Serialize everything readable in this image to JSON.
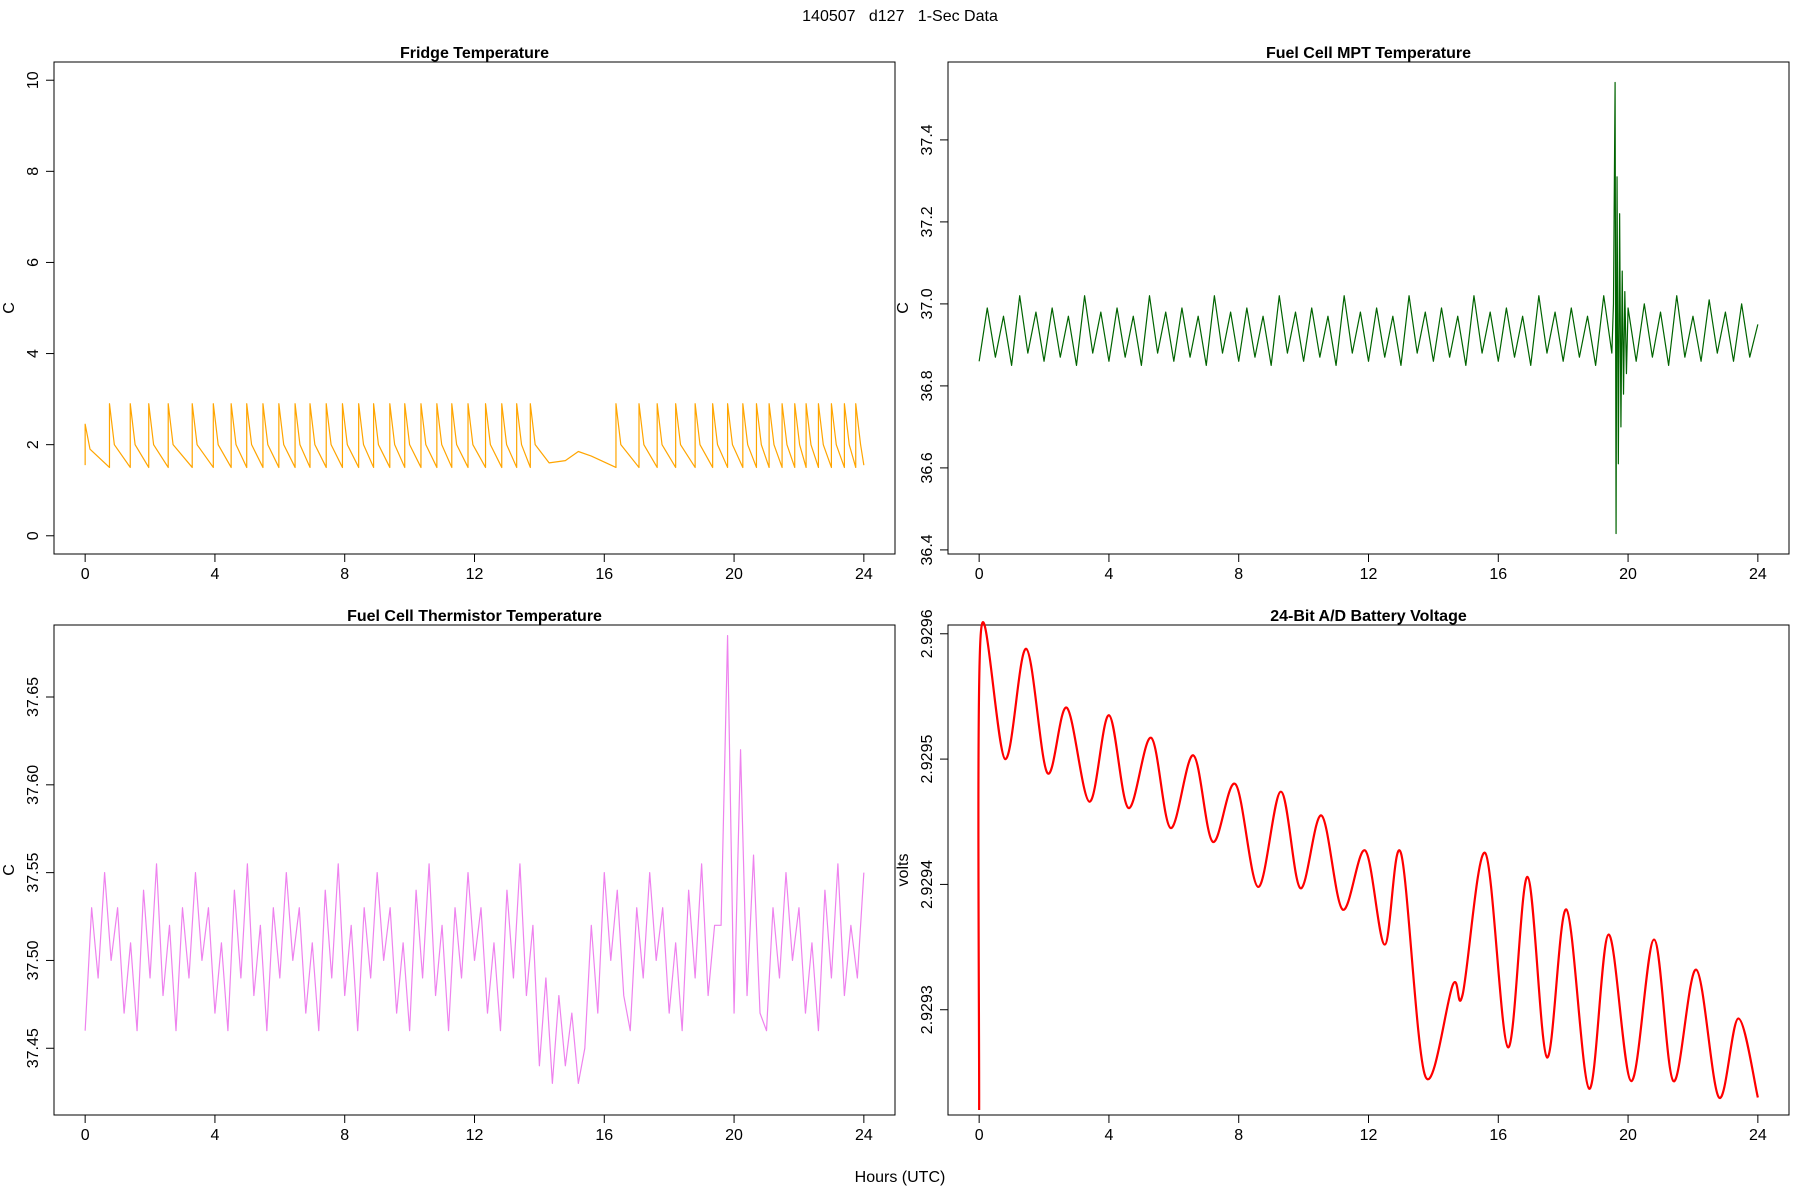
{
  "title": "140507   d127   1-Sec Data",
  "x_label": "Hours (UTC)",
  "chart_data": [
    {
      "type": "line",
      "title": "Fridge Temperature",
      "y_label": "C",
      "color": "#ffa500",
      "xlim": [
        -0.96,
        24.96
      ],
      "xticks": [
        0,
        4,
        8,
        12,
        16,
        20,
        24
      ],
      "ylim": [
        -0.4,
        10.4
      ],
      "yticks": [
        0,
        2,
        4,
        6,
        8,
        10
      ],
      "x": [
        0,
        0,
        0.15,
        0.75,
        0.75,
        0.9,
        1.39,
        1.39,
        1.54,
        1.96,
        1.96,
        2.11,
        2.56,
        2.56,
        2.71,
        3.3,
        3.3,
        3.45,
        3.95,
        3.95,
        4.1,
        4.5,
        4.5,
        4.65,
        4.98,
        4.98,
        5.13,
        5.48,
        5.48,
        5.63,
        5.97,
        5.97,
        6.12,
        6.47,
        6.47,
        6.62,
        6.93,
        6.93,
        7.08,
        7.43,
        7.43,
        7.58,
        7.93,
        7.93,
        8.08,
        8.43,
        8.43,
        8.58,
        8.89,
        8.89,
        9.04,
        9.39,
        9.39,
        9.54,
        9.85,
        9.85,
        10.0,
        10.35,
        10.35,
        10.5,
        10.84,
        10.84,
        10.99,
        11.3,
        11.3,
        11.45,
        11.8,
        11.8,
        11.95,
        12.34,
        12.34,
        12.49,
        12.84,
        12.84,
        12.99,
        13.3,
        13.3,
        13.45,
        13.72,
        13.72,
        13.87,
        14.3,
        14.8,
        15.2,
        15.6,
        16.36,
        16.36,
        16.51,
        17.07,
        17.07,
        17.22,
        17.63,
        17.63,
        17.78,
        18.2,
        18.2,
        18.35,
        18.8,
        18.8,
        18.95,
        19.34,
        19.34,
        19.49,
        19.8,
        19.8,
        19.95,
        20.27,
        20.27,
        20.42,
        20.69,
        20.69,
        20.84,
        21.08,
        21.08,
        21.23,
        21.48,
        21.48,
        21.63,
        21.87,
        21.87,
        22.02,
        22.22,
        22.22,
        22.37,
        22.6,
        22.6,
        22.75,
        23.0,
        23.0,
        23.15,
        23.4,
        23.4,
        23.55,
        23.75,
        23.75,
        23.9,
        24
      ],
      "values": [
        1.55,
        2.45,
        1.9,
        1.5,
        2.9,
        2.0,
        1.5,
        2.9,
        2.0,
        1.5,
        2.9,
        2.0,
        1.5,
        2.9,
        2.0,
        1.5,
        2.9,
        2.0,
        1.5,
        2.9,
        2.0,
        1.5,
        2.9,
        2.0,
        1.5,
        2.9,
        2.0,
        1.5,
        2.9,
        2.0,
        1.5,
        2.9,
        2.0,
        1.5,
        2.9,
        2.0,
        1.5,
        2.9,
        2.0,
        1.5,
        2.9,
        2.0,
        1.5,
        2.9,
        2.0,
        1.5,
        2.9,
        2.0,
        1.5,
        2.9,
        2.0,
        1.5,
        2.9,
        2.0,
        1.5,
        2.9,
        2.0,
        1.5,
        2.9,
        2.0,
        1.5,
        2.9,
        2.0,
        1.5,
        2.9,
        2.0,
        1.5,
        2.9,
        2.0,
        1.5,
        2.9,
        2.0,
        1.5,
        2.9,
        2.0,
        1.5,
        2.9,
        2.0,
        1.5,
        2.9,
        2.0,
        1.6,
        1.65,
        1.85,
        1.75,
        1.5,
        2.9,
        2.0,
        1.5,
        2.9,
        2.0,
        1.5,
        2.9,
        2.0,
        1.5,
        2.9,
        2.0,
        1.5,
        2.9,
        2.0,
        1.5,
        2.9,
        2.0,
        1.5,
        2.9,
        2.0,
        1.5,
        2.9,
        2.0,
        1.5,
        2.9,
        2.0,
        1.5,
        2.9,
        2.0,
        1.5,
        2.9,
        2.0,
        1.5,
        2.9,
        2.0,
        1.5,
        2.9,
        2.0,
        1.5,
        2.9,
        2.0,
        1.5,
        2.9,
        2.0,
        1.5,
        2.9,
        2.0,
        1.5,
        2.9,
        2.0,
        1.55
      ]
    },
    {
      "type": "line",
      "title": "Fuel Cell MPT Temperature",
      "y_label": "C",
      "color": "#006400",
      "xlim": [
        -0.96,
        24.96
      ],
      "xticks": [
        0,
        4,
        8,
        12,
        16,
        20,
        24
      ],
      "ylim": [
        36.39,
        37.59
      ],
      "yticks": [
        36.4,
        36.6,
        36.8,
        {
          "value": 37,
          "label": "37.0"
        },
        37.2,
        37.4
      ],
      "x": [
        0,
        0.25,
        0.5,
        0.75,
        1,
        1.25,
        1.5,
        1.75,
        2,
        2.25,
        2.5,
        2.75,
        3,
        3.25,
        3.5,
        3.75,
        4,
        4.25,
        4.5,
        4.75,
        5,
        5.25,
        5.5,
        5.75,
        6,
        6.25,
        6.5,
        6.75,
        7,
        7.25,
        7.5,
        7.75,
        8,
        8.25,
        8.5,
        8.75,
        9,
        9.25,
        9.5,
        9.75,
        10,
        10.25,
        10.5,
        10.75,
        11,
        11.25,
        11.5,
        11.75,
        12,
        12.25,
        12.5,
        12.75,
        13,
        13.25,
        13.5,
        13.75,
        14,
        14.25,
        14.5,
        14.75,
        15,
        15.25,
        15.5,
        15.75,
        16,
        16.25,
        16.5,
        16.75,
        17,
        17.25,
        17.5,
        17.75,
        18,
        18.25,
        18.5,
        18.75,
        19,
        19.25,
        19.5,
        19.55,
        19.6,
        19.63,
        19.66,
        19.7,
        19.74,
        19.78,
        19.82,
        19.86,
        19.9,
        19.95,
        20,
        20.25,
        20.5,
        20.75,
        21,
        21.25,
        21.5,
        21.75,
        22,
        22.25,
        22.5,
        22.75,
        23,
        23.25,
        23.5,
        23.75,
        24
      ],
      "values": [
        36.86,
        36.99,
        36.87,
        36.97,
        36.85,
        37.02,
        36.88,
        36.98,
        36.86,
        36.99,
        36.87,
        36.97,
        36.85,
        37.02,
        36.88,
        36.98,
        36.86,
        36.99,
        36.87,
        36.97,
        36.85,
        37.02,
        36.88,
        36.98,
        36.86,
        36.99,
        36.87,
        36.97,
        36.85,
        37.02,
        36.88,
        36.98,
        36.86,
        36.99,
        36.87,
        36.97,
        36.85,
        37.02,
        36.88,
        36.98,
        36.86,
        36.99,
        36.87,
        36.97,
        36.85,
        37.02,
        36.88,
        36.98,
        36.86,
        36.99,
        36.87,
        36.97,
        36.85,
        37.02,
        36.88,
        36.98,
        36.86,
        36.99,
        36.87,
        36.97,
        36.85,
        37.02,
        36.88,
        36.98,
        36.86,
        36.99,
        36.87,
        36.97,
        36.85,
        37.02,
        36.88,
        36.98,
        36.86,
        36.99,
        36.87,
        36.97,
        36.85,
        37.02,
        36.88,
        37.0,
        37.54,
        36.44,
        37.31,
        36.61,
        37.22,
        36.7,
        37.08,
        36.78,
        37.03,
        36.83,
        36.99,
        36.86,
        37.0,
        36.87,
        36.98,
        36.85,
        37.02,
        36.87,
        36.97,
        36.86,
        37.01,
        36.88,
        36.98,
        36.86,
        37.0,
        36.87,
        36.95
      ]
    },
    {
      "type": "line",
      "title": "Fuel Cell Thermistor Temperature",
      "y_label": "C",
      "color": "#ee82ee",
      "xlim": [
        -0.96,
        24.96
      ],
      "xticks": [
        0,
        4,
        8,
        12,
        16,
        20,
        24
      ],
      "ylim": [
        37.412,
        37.691
      ],
      "yticks": [
        37.45,
        {
          "value": 37.5,
          "label": "37.50"
        },
        37.55,
        {
          "value": 37.6,
          "label": "37.60"
        },
        37.65
      ],
      "x": [
        0,
        0.2,
        0.4,
        0.6,
        0.8,
        1,
        1.2,
        1.4,
        1.6,
        1.8,
        2,
        2.2,
        2.4,
        2.6,
        2.8,
        3,
        3.2,
        3.4,
        3.6,
        3.8,
        4,
        4.2,
        4.4,
        4.6,
        4.8,
        5,
        5.2,
        5.4,
        5.6,
        5.8,
        6,
        6.2,
        6.4,
        6.6,
        6.8,
        7,
        7.2,
        7.4,
        7.6,
        7.8,
        8,
        8.2,
        8.4,
        8.6,
        8.8,
        9,
        9.2,
        9.4,
        9.6,
        9.8,
        10,
        10.2,
        10.4,
        10.6,
        10.8,
        11,
        11.2,
        11.4,
        11.6,
        11.8,
        12,
        12.2,
        12.4,
        12.6,
        12.8,
        13,
        13.2,
        13.4,
        13.6,
        13.8,
        14,
        14.2,
        14.4,
        14.6,
        14.8,
        15,
        15.2,
        15.4,
        15.6,
        15.8,
        16,
        16.2,
        16.4,
        16.6,
        16.8,
        17,
        17.2,
        17.4,
        17.6,
        17.8,
        18,
        18.2,
        18.4,
        18.6,
        18.8,
        19,
        19.2,
        19.4,
        19.6,
        19.8,
        20,
        20.2,
        20.4,
        20.6,
        20.8,
        21,
        21.2,
        21.4,
        21.6,
        21.8,
        22,
        22.2,
        22.4,
        22.6,
        22.8,
        23,
        23.2,
        23.4,
        23.6,
        23.8,
        24
      ],
      "values": [
        37.46,
        37.53,
        37.49,
        37.55,
        37.5,
        37.53,
        37.47,
        37.51,
        37.46,
        37.54,
        37.49,
        37.555,
        37.48,
        37.52,
        37.46,
        37.53,
        37.49,
        37.55,
        37.5,
        37.53,
        37.47,
        37.51,
        37.46,
        37.54,
        37.49,
        37.555,
        37.48,
        37.52,
        37.46,
        37.53,
        37.49,
        37.55,
        37.5,
        37.53,
        37.47,
        37.51,
        37.46,
        37.54,
        37.49,
        37.555,
        37.48,
        37.52,
        37.46,
        37.53,
        37.49,
        37.55,
        37.5,
        37.53,
        37.47,
        37.51,
        37.46,
        37.54,
        37.49,
        37.555,
        37.48,
        37.52,
        37.46,
        37.53,
        37.49,
        37.55,
        37.5,
        37.53,
        37.47,
        37.51,
        37.46,
        37.54,
        37.49,
        37.555,
        37.48,
        37.52,
        37.44,
        37.49,
        37.43,
        37.48,
        37.44,
        37.47,
        37.43,
        37.45,
        37.52,
        37.47,
        37.55,
        37.5,
        37.54,
        37.48,
        37.46,
        37.53,
        37.49,
        37.55,
        37.5,
        37.53,
        37.47,
        37.51,
        37.46,
        37.54,
        37.49,
        37.555,
        37.48,
        37.52,
        37.52,
        37.685,
        37.47,
        37.62,
        37.48,
        37.56,
        37.47,
        37.46,
        37.53,
        37.49,
        37.55,
        37.5,
        37.53,
        37.47,
        37.51,
        37.46,
        37.54,
        37.49,
        37.555,
        37.48,
        37.52,
        37.49,
        37.55
      ]
    },
    {
      "type": "line",
      "title": "24-Bit A/D Battery Voltage",
      "y_label": "volts",
      "color": "#ff0000",
      "smooth": true,
      "xlim": [
        -0.96,
        24.96
      ],
      "xticks": [
        0,
        4,
        8,
        12,
        16,
        20,
        24
      ],
      "ylim": [
        2.929216,
        2.929607
      ],
      "yticks": [
        2.9293,
        2.9294,
        2.9295,
        2.9296
      ],
      "x": [
        0,
        0.05,
        0.8,
        1.45,
        2.1,
        2.7,
        3.4,
        4.0,
        4.6,
        5.3,
        5.9,
        6.6,
        7.2,
        7.9,
        8.6,
        9.3,
        9.9,
        10.55,
        11.2,
        11.9,
        12.5,
        13.0,
        13.75,
        14.6,
        14.9,
        15.6,
        16.3,
        16.9,
        17.5,
        18.1,
        18.8,
        19.4,
        20.1,
        20.8,
        21.4,
        22.1,
        22.8,
        23.4,
        24
      ],
      "values": [
        2.92922,
        2.9296,
        2.9295,
        2.929588,
        2.929489,
        2.929541,
        2.929466,
        2.929535,
        2.929461,
        2.929517,
        2.929445,
        2.929503,
        2.929434,
        2.92948,
        2.929398,
        2.929474,
        2.929397,
        2.929455,
        2.92938,
        2.929427,
        2.929352,
        2.929425,
        2.929247,
        2.92932,
        2.929312,
        2.929425,
        2.92927,
        2.929406,
        2.929262,
        2.92938,
        2.929237,
        2.92936,
        2.929243,
        2.929356,
        2.929243,
        2.929332,
        2.92923,
        2.929293,
        2.92923
      ]
    }
  ]
}
